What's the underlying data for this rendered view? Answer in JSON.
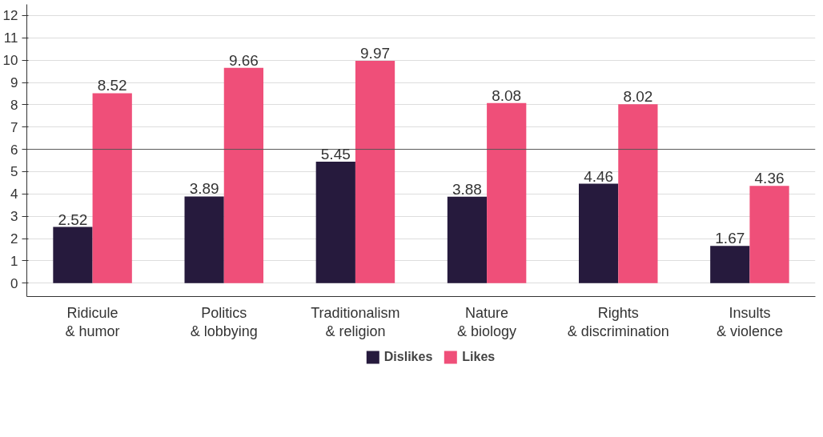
{
  "chart_data": {
    "type": "bar",
    "categories": [
      "Ridicule\n& humor",
      "Politics\n& lobbying",
      "Traditionalism\n& religion",
      "Nature\n& biology",
      "Rights\n& discrimination",
      "Insults\n& violence"
    ],
    "series": [
      {
        "name": "Dislikes",
        "color": "#261a3d",
        "values": [
          2.52,
          3.89,
          5.45,
          3.88,
          4.46,
          1.67
        ]
      },
      {
        "name": "Likes",
        "color": "#ef4f79",
        "values": [
          8.52,
          9.66,
          9.97,
          8.08,
          8.02,
          4.36
        ]
      }
    ],
    "ylim": [
      -0.6,
      12.5
    ],
    "yticks": [
      0,
      1,
      2,
      3,
      4,
      5,
      6,
      7,
      8,
      9,
      10,
      11,
      12
    ],
    "ref_lines": [
      {
        "axis": "y",
        "value": 6,
        "color": "#555555"
      }
    ],
    "grid": "y",
    "legend": "bottom",
    "data_labels": true
  }
}
